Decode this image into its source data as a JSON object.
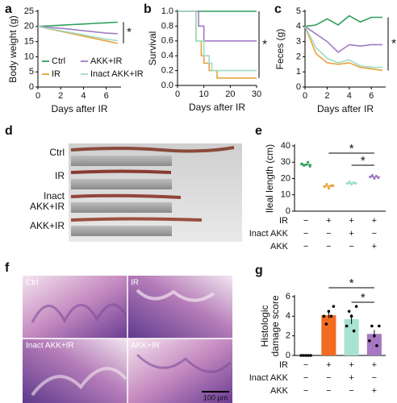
{
  "chart_data": [
    {
      "type": "line",
      "label": "a",
      "ylabel": "Body weight (g)",
      "xlabel": "Days after IR",
      "xlim": [
        0,
        7.3
      ],
      "xticks": [
        0,
        2,
        4,
        6
      ],
      "ylim": [
        0,
        25
      ],
      "yticks": [
        0,
        5,
        10,
        15,
        20,
        25
      ],
      "x": [
        0,
        1,
        2,
        3,
        4,
        5,
        6,
        7
      ],
      "legend": true,
      "significance": "*",
      "series": [
        {
          "name": "Ctrl",
          "color": "#2e9e5b",
          "values": [
            20,
            20.2,
            20.4,
            20.6,
            20.8,
            21,
            21.2,
            21.4
          ]
        },
        {
          "name": "IR",
          "color": "#e8a33c",
          "values": [
            20,
            19.2,
            18.4,
            17.6,
            16.8,
            16,
            15.2,
            14.4
          ]
        },
        {
          "name": "AKK+IR",
          "color": "#a07cc5",
          "values": [
            20,
            19.7,
            19.4,
            19,
            18.6,
            18.2,
            17.8,
            17.6
          ]
        },
        {
          "name": "Inact AKK+IR",
          "color": "#9fdcc4",
          "values": [
            20,
            19.3,
            18.6,
            17.9,
            17.2,
            16.5,
            15.8,
            15.3
          ]
        }
      ]
    },
    {
      "type": "line",
      "label": "b",
      "ylabel": "Survival",
      "xlabel": "Days after IR",
      "xlim": [
        0,
        30
      ],
      "xticks": [
        0,
        10,
        20,
        30
      ],
      "ylim": [
        0,
        1
      ],
      "yticks": [
        {
          "value": 0,
          "label": "0.0"
        },
        0.2,
        0.4,
        0.6,
        0.8,
        {
          "value": 1,
          "label": "1.0"
        }
      ],
      "significance": "*",
      "series": [
        {
          "name": "Ctrl",
          "color": "#2e9e5b",
          "x": [
            0,
            30
          ],
          "values": [
            1,
            1
          ]
        },
        {
          "name": "IR",
          "color": "#e8a33c",
          "x": [
            0,
            7,
            7,
            9,
            9,
            10,
            10,
            12,
            12,
            15,
            15,
            30
          ],
          "values": [
            1,
            1,
            0.6,
            0.6,
            0.4,
            0.4,
            0.3,
            0.3,
            0.2,
            0.2,
            0.1,
            0.1
          ]
        },
        {
          "name": "AKK+IR",
          "color": "#a07cc5",
          "x": [
            0,
            8,
            8,
            10,
            10,
            30
          ],
          "values": [
            1,
            1,
            0.8,
            0.8,
            0.6,
            0.6
          ]
        },
        {
          "name": "Inact AKK+IR",
          "color": "#9fdcc4",
          "x": [
            0,
            7,
            7,
            10,
            10,
            12,
            12,
            13,
            13,
            30
          ],
          "values": [
            1,
            1,
            0.6,
            0.6,
            0.4,
            0.4,
            0.3,
            0.3,
            0.2,
            0.2
          ]
        }
      ]
    },
    {
      "type": "line",
      "label": "c",
      "ylabel": "Feces (g)",
      "xlabel": "Days after IR",
      "xlim": [
        0,
        7.3
      ],
      "xticks": [
        0,
        2,
        4,
        6
      ],
      "ylim": [
        0,
        5
      ],
      "yticks": [
        0,
        1,
        2,
        3,
        4,
        5
      ],
      "x": [
        0,
        1,
        2,
        3,
        4,
        5,
        6,
        7
      ],
      "significance": "*",
      "series": [
        {
          "name": "Ctrl",
          "color": "#2e9e5b",
          "values": [
            4,
            4.1,
            4.5,
            4.1,
            4.7,
            4.3,
            4.6,
            4.6
          ]
        },
        {
          "name": "IR",
          "color": "#e8a33c",
          "values": [
            4,
            2.2,
            1.6,
            1.5,
            1.6,
            1.3,
            1.2,
            1.1
          ]
        },
        {
          "name": "AKK+IR",
          "color": "#a07cc5",
          "values": [
            4,
            3.5,
            3,
            2.3,
            2.8,
            2.7,
            2.8,
            2.8
          ]
        },
        {
          "name": "Inact AKK+IR",
          "color": "#9fdcc4",
          "values": [
            4,
            2.6,
            1.9,
            1.6,
            1.8,
            1.4,
            1.3,
            1.3
          ]
        }
      ]
    },
    {
      "type": "dot",
      "label": "e",
      "ylabel": "Ileal length (cm)",
      "ylim": [
        0,
        40
      ],
      "yticks": [
        0,
        10,
        20,
        30,
        40
      ],
      "values": [
        28.5,
        15.3,
        17.2,
        21
      ],
      "colors": [
        "#2e9e5b",
        "#e8a33c",
        "#9fdcc4",
        "#a07cc5"
      ],
      "points": [
        [
          29,
          28,
          28.5,
          30,
          27.5
        ],
        [
          15,
          16.5,
          14,
          15.5,
          15.8
        ],
        [
          17,
          18,
          16.5,
          17.5,
          17
        ],
        [
          21,
          22,
          20,
          21.5,
          20.5
        ]
      ],
      "significance": [
        "*",
        "*"
      ],
      "treatments": [
        {
          "name": "IR",
          "signs": [
            "−",
            "+",
            "+",
            "+"
          ]
        },
        {
          "name": "Inact AKK",
          "signs": [
            "−",
            "−",
            "+",
            "−"
          ]
        },
        {
          "name": "AKK",
          "signs": [
            "−",
            "−",
            "−",
            "+"
          ]
        }
      ]
    },
    {
      "type": "bar",
      "label": "g",
      "ylabel": [
        "Histologic",
        "damage score"
      ],
      "ylim": [
        0,
        6
      ],
      "yticks": [
        0,
        2,
        4,
        6
      ],
      "values": [
        0,
        4.1,
        3.7,
        2.2
      ],
      "errors": [
        0,
        0.3,
        0.5,
        0.4
      ],
      "colors": [
        "#222222",
        "#f26b21",
        "#a7e3d0",
        "#a678c4"
      ],
      "points": [
        [
          0,
          0,
          0,
          0,
          0
        ],
        [
          4,
          3.2,
          4.5,
          4,
          5
        ],
        [
          3,
          4.5,
          4,
          2.5,
          5
        ],
        [
          1.5,
          3,
          2,
          1,
          3
        ]
      ],
      "significance": [
        "*",
        "*"
      ],
      "treatments": [
        {
          "name": "IR",
          "signs": [
            "−",
            "+",
            "+",
            "+"
          ]
        },
        {
          "name": "Inact AKK",
          "signs": [
            "−",
            "−",
            "+",
            "−"
          ]
        },
        {
          "name": "AKK",
          "signs": [
            "−",
            "−",
            "−",
            "+"
          ]
        }
      ]
    }
  ],
  "photos": [
    {
      "label": "d",
      "row_labels": [
        "Ctrl",
        "IR",
        [
          "Inact",
          "AKK+IR"
        ],
        "AKK+IR"
      ]
    },
    {
      "label": "f",
      "tiles": [
        "Ctrl",
        "IR",
        "Inact AKK+IR",
        "AKK+IR"
      ],
      "scale_bar": "100 μm"
    }
  ]
}
